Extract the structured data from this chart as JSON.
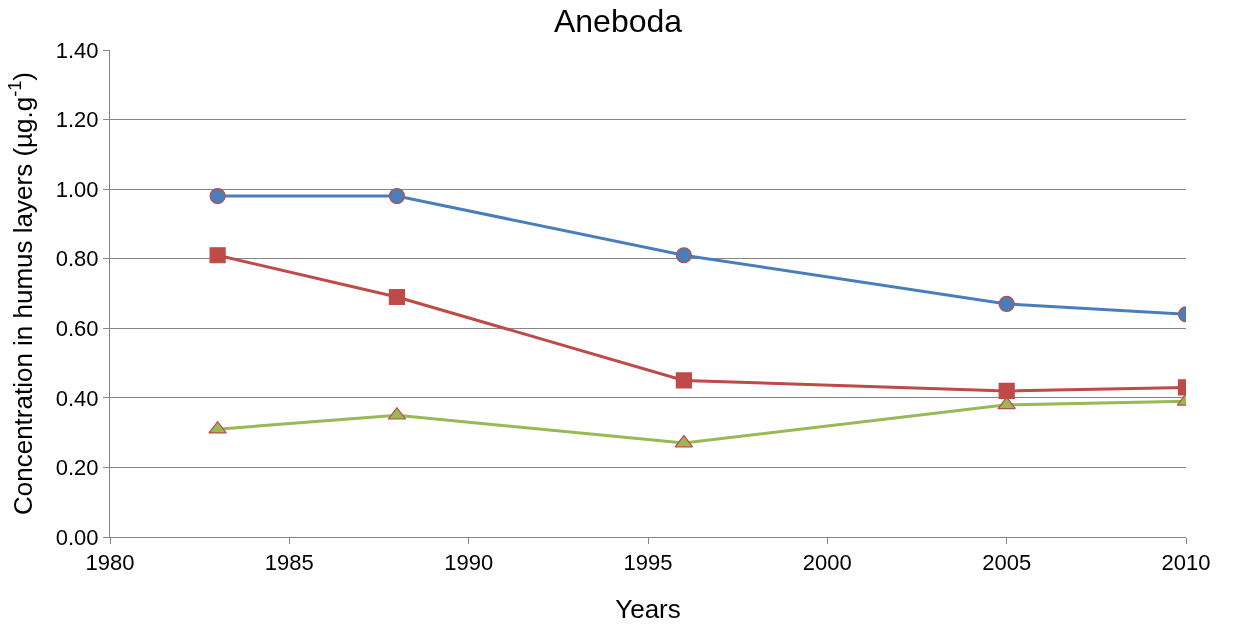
{
  "chart_data": {
    "type": "line",
    "title": "Aneboda",
    "xlabel": "Years",
    "ylabel": "Concentration in humus layers (µg.g$^{-1}$)",
    "x": [
      1983,
      1988,
      1996,
      2005,
      2010
    ],
    "series": [
      {
        "color": "#4a7ebb",
        "marker": "circle",
        "values": [
          0.98,
          0.98,
          0.81,
          0.67,
          0.64
        ]
      },
      {
        "color": "#be4b48",
        "marker": "square",
        "values": [
          0.81,
          0.69,
          0.45,
          0.42,
          0.43
        ]
      },
      {
        "color": "#98b954",
        "marker": "triangle",
        "values": [
          0.31,
          0.35,
          0.27,
          0.38,
          0.39
        ]
      }
    ],
    "xlim": [
      1980,
      2010
    ],
    "xticks": [
      1980,
      1985,
      1990,
      1995,
      2000,
      2005,
      2010
    ],
    "ylim": [
      0,
      1.4
    ],
    "yticks": [
      {
        "value": 0,
        "label": "0.00"
      },
      {
        "value": 0.2,
        "label": "0.20"
      },
      {
        "value": 0.4,
        "label": "0.40"
      },
      {
        "value": 0.6,
        "label": "0.60"
      },
      {
        "value": 0.8,
        "label": "0.80"
      },
      {
        "value": 1.0,
        "label": "1.00"
      },
      {
        "value": 1.2,
        "label": "1.20"
      },
      {
        "value": 1.4,
        "label": "1.40"
      }
    ],
    "grid": "y",
    "line_style": "solid"
  }
}
